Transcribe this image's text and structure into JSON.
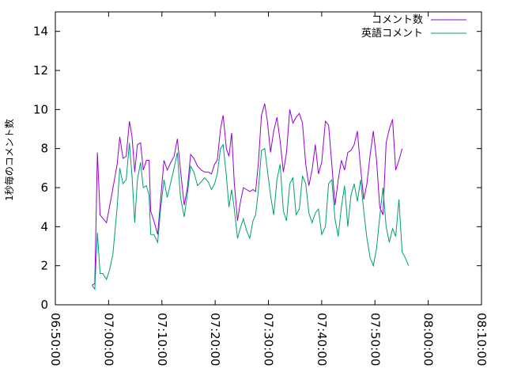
{
  "chart_data": {
    "type": "line",
    "title": "",
    "xlabel": "",
    "ylabel": "1秒毎のコメント数",
    "xlim_minutes": [
      -10,
      70
    ],
    "ylim": [
      0,
      15
    ],
    "grid": false,
    "legend_position": "top-right",
    "x_ticks": [
      {
        "at": -10,
        "label": "06:50:00"
      },
      {
        "at": 0,
        "label": "07:00:00"
      },
      {
        "at": 10,
        "label": "07:10:00"
      },
      {
        "at": 20,
        "label": "07:20:00"
      },
      {
        "at": 30,
        "label": "07:30:00"
      },
      {
        "at": 40,
        "label": "07:40:00"
      },
      {
        "at": 50,
        "label": "07:50:00"
      },
      {
        "at": 60,
        "label": "08:00:00"
      },
      {
        "at": 70,
        "label": "08:10:00"
      }
    ],
    "y_ticks": [
      0,
      2,
      4,
      6,
      8,
      10,
      12,
      14
    ],
    "series": [
      {
        "name": "コメント数",
        "color": "#9400d3",
        "points": [
          [
            -3.1,
            1.0
          ],
          [
            -2.6,
            1.1
          ],
          [
            -2.1,
            7.8
          ],
          [
            -1.6,
            4.6
          ],
          [
            -0.4,
            4.2
          ],
          [
            0.7,
            5.8
          ],
          [
            1.6,
            7.2
          ],
          [
            2.1,
            8.6
          ],
          [
            2.7,
            7.5
          ],
          [
            3.3,
            7.6
          ],
          [
            3.9,
            9.4
          ],
          [
            4.4,
            8.6
          ],
          [
            4.9,
            6.8
          ],
          [
            5.4,
            8.2
          ],
          [
            6.0,
            8.3
          ],
          [
            6.5,
            6.9
          ],
          [
            7.1,
            7.4
          ],
          [
            7.6,
            7.4
          ],
          [
            7.9,
            4.8
          ],
          [
            8.5,
            4.3
          ],
          [
            9.2,
            3.6
          ],
          [
            9.8,
            5.5
          ],
          [
            10.4,
            7.4
          ],
          [
            11.0,
            6.9
          ],
          [
            11.7,
            7.3
          ],
          [
            12.3,
            7.6
          ],
          [
            12.9,
            8.5
          ],
          [
            13.5,
            6.9
          ],
          [
            14.2,
            5.1
          ],
          [
            14.8,
            6.0
          ],
          [
            15.4,
            7.7
          ],
          [
            16.0,
            7.5
          ],
          [
            16.7,
            7.1
          ],
          [
            17.4,
            6.9
          ],
          [
            18.0,
            6.8
          ],
          [
            18.7,
            6.8
          ],
          [
            19.3,
            6.7
          ],
          [
            19.9,
            7.2
          ],
          [
            20.4,
            7.4
          ],
          [
            21.0,
            9.0
          ],
          [
            21.5,
            9.7
          ],
          [
            22.1,
            8.0
          ],
          [
            22.6,
            7.6
          ],
          [
            23.1,
            8.8
          ],
          [
            23.6,
            6.2
          ],
          [
            24.2,
            4.3
          ],
          [
            24.7,
            5.2
          ],
          [
            25.3,
            6.0
          ],
          [
            25.9,
            5.9
          ],
          [
            26.5,
            5.8
          ],
          [
            27.1,
            5.9
          ],
          [
            27.6,
            5.8
          ],
          [
            28.1,
            7.2
          ],
          [
            28.7,
            9.7
          ],
          [
            29.3,
            10.3
          ],
          [
            29.8,
            9.4
          ],
          [
            30.4,
            7.8
          ],
          [
            31.0,
            8.9
          ],
          [
            31.6,
            9.6
          ],
          [
            32.2,
            8.4
          ],
          [
            32.8,
            6.8
          ],
          [
            33.4,
            7.8
          ],
          [
            34.0,
            10.0
          ],
          [
            34.6,
            9.3
          ],
          [
            35.2,
            9.6
          ],
          [
            35.8,
            9.8
          ],
          [
            36.4,
            9.3
          ],
          [
            37.0,
            7.2
          ],
          [
            37.6,
            6.1
          ],
          [
            38.2,
            6.9
          ],
          [
            38.8,
            8.2
          ],
          [
            39.4,
            6.7
          ],
          [
            40.0,
            7.3
          ],
          [
            40.7,
            9.4
          ],
          [
            41.3,
            9.2
          ],
          [
            41.9,
            7.2
          ],
          [
            42.5,
            5.1
          ],
          [
            43.1,
            6.4
          ],
          [
            43.7,
            7.4
          ],
          [
            44.3,
            6.9
          ],
          [
            44.9,
            7.8
          ],
          [
            45.5,
            7.9
          ],
          [
            46.1,
            8.2
          ],
          [
            46.7,
            8.9
          ],
          [
            47.3,
            7.0
          ],
          [
            47.9,
            5.4
          ],
          [
            48.5,
            6.2
          ],
          [
            49.1,
            7.7
          ],
          [
            49.7,
            8.9
          ],
          [
            50.3,
            7.4
          ],
          [
            50.9,
            5.0
          ],
          [
            51.5,
            4.6
          ],
          [
            52.1,
            8.3
          ],
          [
            52.7,
            9.0
          ],
          [
            53.3,
            9.5
          ],
          [
            53.9,
            6.9
          ],
          [
            54.5,
            7.4
          ],
          [
            55.1,
            8.0
          ]
        ]
      },
      {
        "name": "英語コメント",
        "color": "#009e73",
        "points": [
          [
            -3.1,
            1.0
          ],
          [
            -2.6,
            0.8
          ],
          [
            -2.1,
            3.7
          ],
          [
            -1.6,
            1.6
          ],
          [
            -1.1,
            1.6
          ],
          [
            -0.4,
            1.3
          ],
          [
            0.2,
            1.8
          ],
          [
            0.8,
            2.6
          ],
          [
            1.6,
            5.0
          ],
          [
            2.1,
            7.0
          ],
          [
            2.7,
            6.2
          ],
          [
            3.3,
            6.4
          ],
          [
            3.9,
            8.3
          ],
          [
            4.4,
            6.6
          ],
          [
            4.9,
            4.2
          ],
          [
            5.4,
            6.4
          ],
          [
            6.0,
            7.3
          ],
          [
            6.5,
            6.0
          ],
          [
            7.1,
            6.1
          ],
          [
            7.6,
            5.6
          ],
          [
            7.9,
            3.6
          ],
          [
            8.5,
            3.6
          ],
          [
            9.2,
            3.2
          ],
          [
            9.8,
            5.0
          ],
          [
            10.4,
            6.4
          ],
          [
            11.0,
            5.5
          ],
          [
            11.7,
            6.3
          ],
          [
            12.3,
            7.0
          ],
          [
            12.9,
            7.8
          ],
          [
            13.5,
            5.5
          ],
          [
            14.2,
            4.5
          ],
          [
            14.8,
            5.7
          ],
          [
            15.4,
            7.1
          ],
          [
            16.0,
            6.8
          ],
          [
            16.7,
            6.1
          ],
          [
            17.4,
            6.3
          ],
          [
            18.0,
            6.5
          ],
          [
            18.7,
            6.3
          ],
          [
            19.3,
            5.9
          ],
          [
            19.9,
            6.2
          ],
          [
            20.4,
            6.7
          ],
          [
            21.0,
            8.0
          ],
          [
            21.5,
            8.2
          ],
          [
            22.1,
            6.6
          ],
          [
            22.6,
            5.0
          ],
          [
            23.1,
            5.9
          ],
          [
            23.6,
            4.9
          ],
          [
            24.2,
            3.4
          ],
          [
            24.7,
            3.9
          ],
          [
            25.3,
            4.4
          ],
          [
            25.9,
            3.8
          ],
          [
            26.5,
            3.4
          ],
          [
            27.1,
            4.3
          ],
          [
            27.6,
            4.6
          ],
          [
            28.1,
            5.8
          ],
          [
            28.7,
            7.9
          ],
          [
            29.3,
            8.0
          ],
          [
            29.8,
            6.9
          ],
          [
            30.4,
            5.6
          ],
          [
            31.0,
            4.6
          ],
          [
            31.6,
            6.4
          ],
          [
            32.2,
            7.2
          ],
          [
            32.8,
            4.8
          ],
          [
            33.4,
            4.3
          ],
          [
            34.0,
            6.2
          ],
          [
            34.6,
            6.5
          ],
          [
            35.2,
            4.6
          ],
          [
            35.8,
            4.9
          ],
          [
            36.4,
            6.6
          ],
          [
            37.0,
            6.2
          ],
          [
            37.6,
            4.7
          ],
          [
            38.2,
            4.2
          ],
          [
            38.8,
            4.7
          ],
          [
            39.4,
            4.9
          ],
          [
            40.0,
            3.6
          ],
          [
            40.7,
            4.0
          ],
          [
            41.3,
            6.2
          ],
          [
            41.9,
            6.4
          ],
          [
            42.5,
            4.4
          ],
          [
            43.1,
            3.5
          ],
          [
            43.7,
            5.0
          ],
          [
            44.3,
            6.1
          ],
          [
            44.9,
            4.0
          ],
          [
            45.5,
            5.6
          ],
          [
            46.1,
            6.2
          ],
          [
            46.7,
            5.3
          ],
          [
            47.3,
            6.4
          ],
          [
            47.9,
            4.8
          ],
          [
            48.5,
            3.4
          ],
          [
            49.1,
            2.4
          ],
          [
            49.7,
            2.0
          ],
          [
            50.3,
            2.9
          ],
          [
            50.9,
            4.5
          ],
          [
            51.5,
            6.0
          ],
          [
            52.1,
            4.0
          ],
          [
            52.7,
            3.2
          ],
          [
            53.3,
            3.9
          ],
          [
            53.9,
            3.5
          ],
          [
            54.5,
            5.4
          ],
          [
            55.1,
            2.7
          ],
          [
            55.7,
            2.4
          ],
          [
            56.3,
            2.0
          ]
        ]
      }
    ]
  }
}
